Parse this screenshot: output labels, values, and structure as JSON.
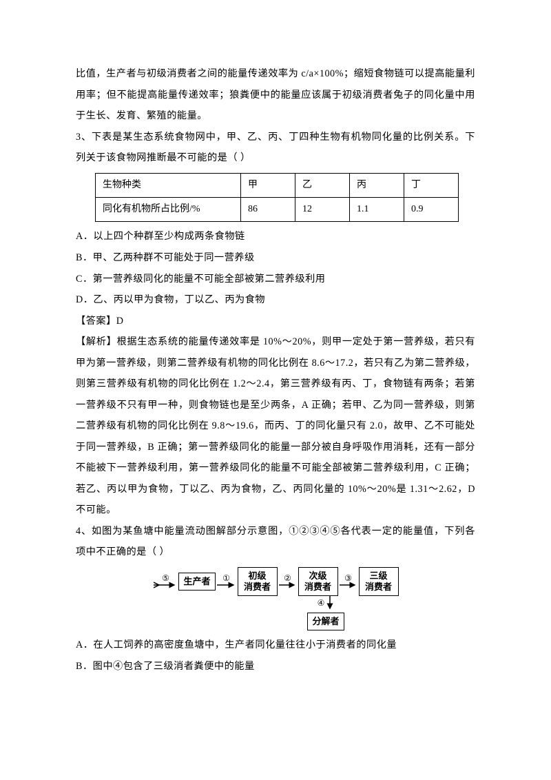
{
  "p_intro": "比值，生产者与初级消费者之间的能量传递效率为 c/a×100%；缩短食物链可以提高能量利用率；但不能提高能量传递效率；狼粪便中的能量应该属于初级消费者兔子的同化量中用于生长、发育、繁殖的能量。",
  "q3": {
    "stem": "3、下表是某生态系统食物网中，甲、乙、丙、丁四种生物有机物同化量的比例关系。下列关于该食物网推断最不可能的是（   ）",
    "table": {
      "header": [
        "生物种类",
        "甲",
        "乙",
        "丙",
        "丁"
      ],
      "row_label": "同化有机物所占比例/%",
      "values": [
        "86",
        "12",
        "1.1",
        "0.9"
      ],
      "border_color": "#000000",
      "cell_font_size": 14
    },
    "optA": "A．以上四个种群至少构成两条食物链",
    "optB": "B．甲、乙两种群不可能处于同一营养级",
    "optC": "C．第一营养级同化的能量不可能全部被第二营养级利用",
    "optD": "D．乙、丙以甲为食物，丁以乙、丙为食物",
    "answer": "【答案】D",
    "explain": "【解析】根据生态系统的能量传递效率是 10%～20%，则甲一定处于第一营养级，若只有甲为第一营养级，则第二营养级有机物的同化比例在 8.6～17.2，若只有乙为第二营养级，则第三营养级有机物的同化比例在 1.2～2.4，第三营养级有丙、丁，食物链有两条；若第一营养级不只有甲一种，则食物链也是至少两条，A 正确；若甲、乙为同一营养级，则第二营养级有机物的同化比例在 9.8～19.6，而丙、丁的同化量只有 2.0，故甲、乙不可能处于同一营养级，B 正确；第一营养级同化的能量一部分被自身呼吸作用消耗，还有一部分不能被下一营养级利用，第一营养级同化的能量不可能全部被第二营养级利用，C 正确；若乙、丙以甲为食物，丁以乙、丙为食物，乙、丙同化量的 10%～20%是 1.31～2.62，D 不可能。"
  },
  "q4": {
    "stem": "4、如图为某鱼塘中能量流动图解部分示意图，①②③④⑤各代表一定的能量值，下列各项中不正确的是（     ）",
    "flow": {
      "nodes": {
        "producer": "生产者",
        "primary": "初级\n消费者",
        "secondary": "次级\n消费者",
        "tertiary": "三级\n消费者",
        "decomposer": "分解者"
      },
      "arrows": {
        "in": "⑤",
        "a1": "①",
        "a2": "②",
        "a3": "③",
        "down": "④"
      },
      "stroke": "#000000"
    },
    "optA": "A．在人工饲养的高密度鱼塘中，生产者同化量往往小于消费者的同化量",
    "optB": "B．图中④包含了三级消者粪便中的能量"
  }
}
